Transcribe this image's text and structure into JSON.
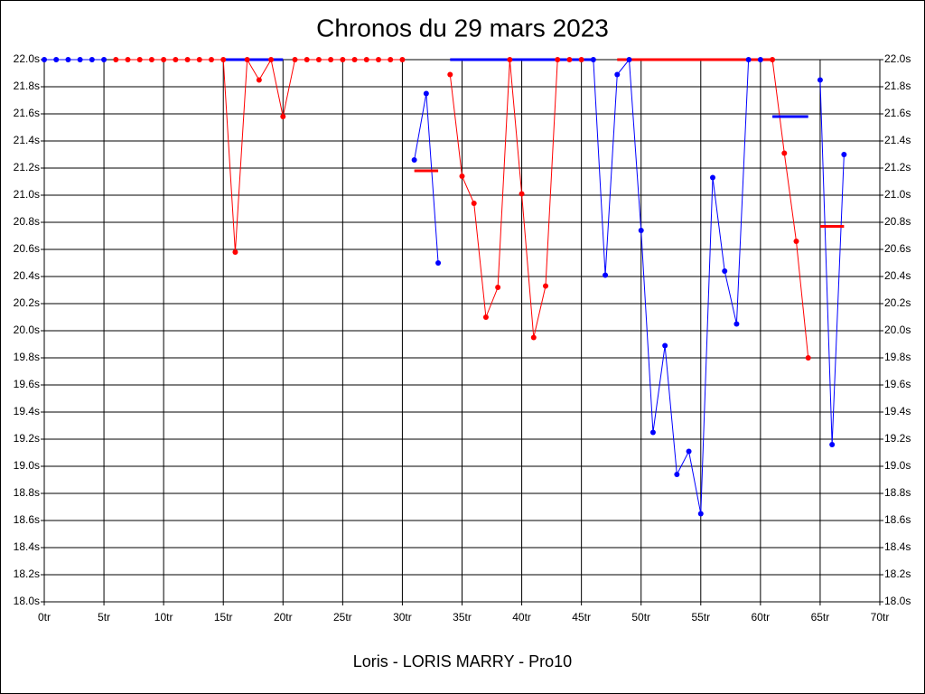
{
  "chart_data": {
    "type": "line",
    "title": "Chronos du 29 mars 2023",
    "x_label": "Loris - LORIS MARRY - Pro10",
    "grid": true,
    "xlim": [
      0,
      70
    ],
    "ylim": [
      18.0,
      22.0
    ],
    "xticks": [
      {
        "value": 0,
        "label": "0tr"
      },
      {
        "value": 5,
        "label": "5tr"
      },
      {
        "value": 10,
        "label": "10tr"
      },
      {
        "value": 15,
        "label": "15tr"
      },
      {
        "value": 20,
        "label": "20tr"
      },
      {
        "value": 25,
        "label": "25tr"
      },
      {
        "value": 30,
        "label": "30tr"
      },
      {
        "value": 35,
        "label": "35tr"
      },
      {
        "value": 40,
        "label": "40tr"
      },
      {
        "value": 45,
        "label": "45tr"
      },
      {
        "value": 50,
        "label": "50tr"
      },
      {
        "value": 55,
        "label": "55tr"
      },
      {
        "value": 60,
        "label": "60tr"
      },
      {
        "value": 65,
        "label": "65tr"
      },
      {
        "value": 70,
        "label": "70tr"
      }
    ],
    "yticks": [
      {
        "value": 18.0,
        "label": "18.0s"
      },
      {
        "value": 18.2,
        "label": "18.2s"
      },
      {
        "value": 18.4,
        "label": "18.4s"
      },
      {
        "value": 18.6,
        "label": "18.6s"
      },
      {
        "value": 18.8,
        "label": "18.8s"
      },
      {
        "value": 19.0,
        "label": "19.0s"
      },
      {
        "value": 19.2,
        "label": "19.2s"
      },
      {
        "value": 19.4,
        "label": "19.4s"
      },
      {
        "value": 19.6,
        "label": "19.6s"
      },
      {
        "value": 19.8,
        "label": "19.8s"
      },
      {
        "value": 20.0,
        "label": "20.0s"
      },
      {
        "value": 20.2,
        "label": "20.2s"
      },
      {
        "value": 20.4,
        "label": "20.4s"
      },
      {
        "value": 20.6,
        "label": "20.6s"
      },
      {
        "value": 20.8,
        "label": "20.8s"
      },
      {
        "value": 21.0,
        "label": "21.0s"
      },
      {
        "value": 21.2,
        "label": "21.2s"
      },
      {
        "value": 21.4,
        "label": "21.4s"
      },
      {
        "value": 21.6,
        "label": "21.6s"
      },
      {
        "value": 21.8,
        "label": "21.8s"
      },
      {
        "value": 22.0,
        "label": "22.0s"
      }
    ],
    "x": [
      0,
      1,
      2,
      3,
      4,
      5,
      6,
      7,
      8,
      9,
      10,
      11,
      12,
      13,
      14,
      15,
      16,
      17,
      18,
      19,
      20,
      21,
      22,
      23,
      24,
      25,
      26,
      27,
      28,
      29,
      30,
      31,
      32,
      33,
      34,
      35,
      36,
      37,
      38,
      39,
      40,
      41,
      42,
      43,
      44,
      45,
      46,
      47,
      48,
      49,
      50,
      51,
      52,
      53,
      54,
      55,
      56,
      57,
      58,
      59,
      60,
      61,
      62,
      63,
      64,
      65,
      66,
      67
    ],
    "series": [
      {
        "color": "#0000ff",
        "values": [
          22.0,
          22.0,
          22.0,
          22.0,
          22.0,
          22.0,
          null,
          null,
          null,
          null,
          null,
          null,
          null,
          null,
          null,
          null,
          null,
          null,
          null,
          null,
          null,
          null,
          null,
          null,
          null,
          null,
          null,
          null,
          null,
          null,
          null,
          21.26,
          21.75,
          20.5,
          null,
          null,
          null,
          null,
          null,
          null,
          null,
          null,
          null,
          null,
          null,
          null,
          22.0,
          20.41,
          21.89,
          22.0,
          20.74,
          19.25,
          19.89,
          18.94,
          19.11,
          18.65,
          21.13,
          20.44,
          20.05,
          22.0,
          22.0,
          null,
          null,
          null,
          null,
          21.85,
          19.16,
          21.3
        ]
      },
      {
        "color": "#ff0000",
        "values": [
          null,
          null,
          null,
          null,
          null,
          null,
          22.0,
          22.0,
          22.0,
          22.0,
          22.0,
          22.0,
          22.0,
          22.0,
          22.0,
          22.0,
          20.58,
          22.0,
          21.85,
          22.0,
          21.58,
          22.0,
          22.0,
          22.0,
          22.0,
          22.0,
          22.0,
          22.0,
          22.0,
          22.0,
          22.0,
          null,
          null,
          null,
          21.89,
          21.14,
          20.94,
          20.1,
          20.32,
          22.0,
          21.01,
          19.95,
          20.33,
          22.0,
          22.0,
          22.0,
          null,
          null,
          null,
          null,
          null,
          null,
          null,
          null,
          null,
          null,
          null,
          null,
          null,
          null,
          null,
          22.0,
          21.31,
          20.66,
          19.8,
          null,
          null,
          null
        ]
      }
    ],
    "segments": [
      {
        "color": "#0000ff",
        "x": [
          15,
          20
        ],
        "y": 22.0
      },
      {
        "color": "#ff0000",
        "x": [
          31,
          33
        ],
        "y": 21.18
      },
      {
        "color": "#0000ff",
        "x": [
          34,
          46
        ],
        "y": 22.0
      },
      {
        "color": "#ff0000",
        "x": [
          48,
          61
        ],
        "y": 22.0
      },
      {
        "color": "#0000ff",
        "x": [
          61,
          64
        ],
        "y": 21.58
      },
      {
        "color": "#ff0000",
        "x": [
          65,
          67
        ],
        "y": 20.77
      }
    ]
  }
}
